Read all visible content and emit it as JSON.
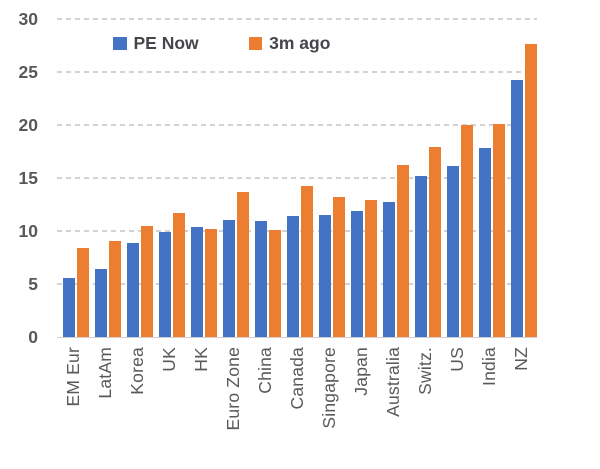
{
  "chart_data": {
    "type": "bar",
    "title": "",
    "categories": [
      "EM Eur",
      "LatAm",
      "Korea",
      "UK",
      "HK",
      "Euro Zone",
      "China",
      "Canada",
      "Singapore",
      "Japan",
      "Australia",
      "Switz.",
      "US",
      "India",
      "NZ"
    ],
    "series": [
      {
        "name": "PE Now",
        "color": "#4472C4",
        "values": [
          5.6,
          6.4,
          8.9,
          9.9,
          10.4,
          11.0,
          10.9,
          11.4,
          11.5,
          11.9,
          12.7,
          15.2,
          16.1,
          17.8,
          24.2
        ]
      },
      {
        "name": "3m ago",
        "color": "#ED7D31",
        "values": [
          8.4,
          9.1,
          10.5,
          11.7,
          10.2,
          13.7,
          10.1,
          14.2,
          13.2,
          12.9,
          16.2,
          17.9,
          20.0,
          20.1,
          27.6
        ]
      }
    ],
    "xlabel": "",
    "ylabel": "",
    "ylim": [
      0,
      30
    ],
    "yticks": [
      0,
      5,
      10,
      15,
      20,
      25,
      30
    ],
    "grid": "dashed-horizontal",
    "legend_position": "top"
  },
  "colors": {
    "axis_text": "#595959",
    "legend_text": "#44464b",
    "gridline": "#d2d2d2",
    "axis_line": "#cfcfcf",
    "background": "#ffffff"
  }
}
